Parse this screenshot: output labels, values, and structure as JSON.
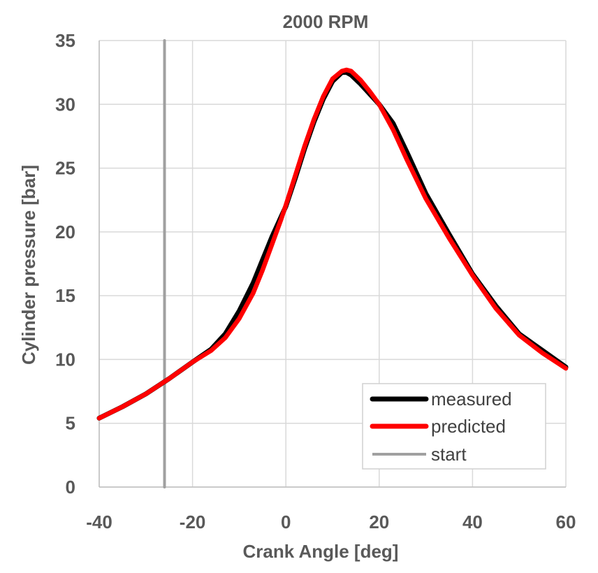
{
  "chart_data": {
    "type": "line",
    "title": "2000 RPM",
    "xlabel": "Crank Angle [deg]",
    "ylabel": "Cylinder pressure [bar]",
    "xlim": [
      -40,
      60
    ],
    "ylim": [
      0,
      35
    ],
    "xticks": [
      -40,
      -20,
      0,
      20,
      40,
      60
    ],
    "yticks": [
      0,
      5,
      10,
      15,
      20,
      25,
      30,
      35
    ],
    "grid": true,
    "legend_position": "bottom-right",
    "series": [
      {
        "name": "measured",
        "color": "#000000",
        "x": [
          -40,
          -35,
          -30,
          -25,
          -20,
          -16,
          -13,
          -10,
          -7,
          -5,
          -3,
          -1,
          0,
          2,
          4,
          6,
          8,
          10,
          12,
          13,
          14,
          16,
          18,
          20,
          23,
          26,
          30,
          35,
          40,
          45,
          50,
          55,
          60
        ],
        "y": [
          5.4,
          6.3,
          7.3,
          8.5,
          9.8,
          10.8,
          12.0,
          13.8,
          16.0,
          17.8,
          19.6,
          21.2,
          22.0,
          24.2,
          26.5,
          28.6,
          30.4,
          31.8,
          32.5,
          32.5,
          32.3,
          31.6,
          30.8,
          30.0,
          28.5,
          26.2,
          23.0,
          19.8,
          16.7,
          14.2,
          12.0,
          10.7,
          9.4
        ]
      },
      {
        "name": "predicted",
        "color": "#ff0000",
        "x": [
          -40,
          -35,
          -30,
          -25,
          -20,
          -16,
          -13,
          -10,
          -7,
          -5,
          -3,
          -1,
          0,
          2,
          4,
          6,
          8,
          10,
          12,
          13,
          14,
          16,
          18,
          20,
          23,
          26,
          30,
          35,
          40,
          45,
          50,
          55,
          60
        ],
        "y": [
          5.4,
          6.3,
          7.3,
          8.5,
          9.8,
          10.7,
          11.7,
          13.2,
          15.2,
          17.0,
          19.0,
          21.0,
          22.1,
          24.4,
          26.7,
          28.8,
          30.6,
          32.0,
          32.6,
          32.7,
          32.6,
          31.9,
          31.0,
          30.0,
          28.0,
          25.6,
          22.6,
          19.5,
          16.6,
          14.0,
          11.9,
          10.5,
          9.3
        ]
      },
      {
        "name": "start",
        "color": "#a0a0a0",
        "x": [
          -26,
          -26
        ],
        "y": [
          0,
          35
        ]
      }
    ]
  }
}
